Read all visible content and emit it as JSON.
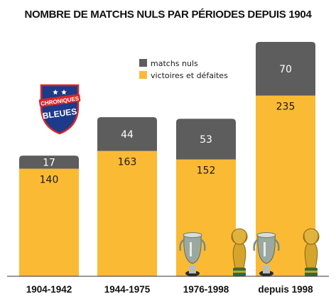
{
  "chart_data": {
    "type": "bar",
    "stacked": true,
    "title": "NOMBRE DE MATCHS NULS PAR PÉRIODES DEPUIS 1904",
    "categories": [
      "1904-1942",
      "1944-1975",
      "1976-1998",
      "depuis 1998"
    ],
    "series": [
      {
        "name": "victoires et défaites",
        "values": [
          140,
          163,
          152,
          235
        ],
        "color": "#FBBA34"
      },
      {
        "name": "matchs nuls",
        "values": [
          17,
          44,
          53,
          70
        ],
        "color": "#5D5D5D"
      }
    ],
    "legend_position": "top-center",
    "grid": false,
    "ylim": [
      0,
      305
    ]
  },
  "logo": {
    "icon": "shield-logo-icon",
    "text_line1": "CHRONIQUES",
    "text_line2": "BLEUES",
    "colors": {
      "shield": "#1E3A8A",
      "red": "#D62828",
      "star": "#ffffff"
    }
  },
  "trophy_icons": [
    "euro-trophy-icon",
    "world-cup-trophy-icon",
    "euro-trophy-icon",
    "world-cup-trophy-icon"
  ]
}
